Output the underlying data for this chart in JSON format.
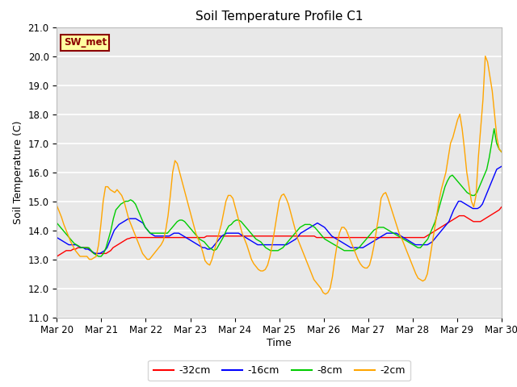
{
  "title": "Soil Temperature Profile C1",
  "xlabel": "Time",
  "ylabel": "Soil Temperature (C)",
  "ylim": [
    11.0,
    21.0
  ],
  "yticks": [
    11.0,
    12.0,
    13.0,
    14.0,
    15.0,
    16.0,
    17.0,
    18.0,
    19.0,
    20.0,
    21.0
  ],
  "annotation_text": "SW_met",
  "annotation_color": "#8B0000",
  "annotation_bg": "#FFFFA0",
  "annotation_border": "#8B0000",
  "background_color": "#E8E8E8",
  "grid_color": "#FFFFFF",
  "series_colors": {
    "-32cm": "#FF0000",
    "-16cm": "#0000FF",
    "-8cm": "#00CC00",
    "-2cm": "#FFA500"
  },
  "x_labels": [
    "Mar 20",
    "Mar 21",
    "Mar 22",
    "Mar 23",
    "Mar 24",
    "Mar 25",
    "Mar 26",
    "Mar 27",
    "Mar 28",
    "Mar 29",
    "Mar 30"
  ],
  "x_ticks": [
    0,
    24,
    48,
    72,
    96,
    120,
    144,
    168,
    192,
    216,
    240
  ],
  "total_hours": 240,
  "data_32cm": [
    13.1,
    13.15,
    13.2,
    13.25,
    13.3,
    13.3,
    13.3,
    13.35,
    13.35,
    13.4,
    13.4,
    13.4,
    13.4,
    13.4,
    13.35,
    13.25,
    13.2,
    13.2,
    13.2,
    13.2,
    13.2,
    13.2,
    13.25,
    13.3,
    13.4,
    13.45,
    13.5,
    13.55,
    13.6,
    13.65,
    13.7,
    13.72,
    13.75,
    13.75,
    13.75,
    13.75,
    13.75,
    13.75,
    13.75,
    13.75,
    13.75,
    13.75,
    13.75,
    13.75,
    13.75,
    13.75,
    13.75,
    13.75,
    13.75,
    13.75,
    13.75,
    13.75,
    13.75,
    13.75,
    13.75,
    13.75,
    13.75,
    13.75,
    13.75,
    13.75,
    13.75,
    13.75,
    13.75,
    13.75,
    13.8,
    13.8,
    13.8,
    13.8,
    13.8,
    13.8,
    13.8,
    13.8,
    13.8,
    13.8,
    13.8,
    13.8,
    13.8,
    13.8,
    13.8,
    13.8,
    13.8,
    13.8,
    13.8,
    13.8,
    13.8,
    13.8,
    13.8,
    13.8,
    13.8,
    13.8,
    13.8,
    13.8,
    13.8,
    13.8,
    13.8,
    13.8,
    13.8,
    13.8,
    13.8,
    13.8,
    13.8,
    13.8,
    13.8,
    13.8,
    13.8,
    13.8,
    13.8,
    13.8,
    13.8,
    13.8,
    13.8,
    13.75,
    13.75,
    13.75,
    13.75,
    13.75,
    13.75,
    13.75,
    13.75,
    13.75,
    13.75,
    13.75,
    13.75,
    13.75,
    13.75,
    13.75,
    13.75,
    13.75,
    13.75,
    13.75,
    13.75,
    13.75,
    13.75,
    13.75,
    13.75,
    13.75,
    13.75,
    13.75,
    13.75,
    13.75,
    13.75,
    13.75,
    13.75,
    13.75,
    13.75,
    13.75,
    13.75,
    13.75,
    13.75,
    13.75,
    13.75,
    13.75,
    13.75,
    13.75,
    13.75,
    13.75,
    13.75,
    13.75,
    13.8,
    13.85,
    13.9,
    13.95,
    14.0,
    14.05,
    14.1,
    14.15,
    14.2,
    14.25,
    14.3,
    14.35,
    14.4,
    14.45,
    14.5,
    14.5,
    14.5,
    14.45,
    14.4,
    14.35,
    14.3,
    14.3,
    14.3,
    14.3,
    14.35,
    14.4,
    14.45,
    14.5,
    14.55,
    14.6,
    14.65,
    14.7,
    14.8
  ],
  "data_16cm": [
    13.75,
    13.7,
    13.65,
    13.6,
    13.55,
    13.5,
    13.5,
    13.5,
    13.5,
    13.45,
    13.4,
    13.4,
    13.35,
    13.35,
    13.3,
    13.25,
    13.2,
    13.2,
    13.2,
    13.25,
    13.3,
    13.4,
    13.6,
    13.8,
    14.0,
    14.1,
    14.2,
    14.25,
    14.3,
    14.35,
    14.4,
    14.4,
    14.4,
    14.4,
    14.35,
    14.3,
    14.25,
    14.1,
    14.0,
    13.9,
    13.85,
    13.8,
    13.8,
    13.8,
    13.8,
    13.8,
    13.8,
    13.8,
    13.85,
    13.9,
    13.9,
    13.9,
    13.85,
    13.8,
    13.75,
    13.7,
    13.65,
    13.6,
    13.55,
    13.5,
    13.45,
    13.4,
    13.4,
    13.35,
    13.35,
    13.4,
    13.5,
    13.6,
    13.7,
    13.8,
    13.85,
    13.9,
    13.9,
    13.9,
    13.9,
    13.9,
    13.9,
    13.85,
    13.8,
    13.75,
    13.7,
    13.65,
    13.6,
    13.55,
    13.5,
    13.5,
    13.5,
    13.5,
    13.5,
    13.5,
    13.5,
    13.5,
    13.5,
    13.5,
    13.5,
    13.5,
    13.5,
    13.55,
    13.6,
    13.65,
    13.7,
    13.8,
    13.9,
    13.95,
    14.0,
    14.05,
    14.1,
    14.15,
    14.2,
    14.25,
    14.2,
    14.15,
    14.1,
    14.0,
    13.9,
    13.8,
    13.75,
    13.7,
    13.65,
    13.6,
    13.55,
    13.5,
    13.45,
    13.4,
    13.4,
    13.4,
    13.4,
    13.4,
    13.4,
    13.45,
    13.5,
    13.55,
    13.6,
    13.65,
    13.7,
    13.75,
    13.8,
    13.85,
    13.9,
    13.9,
    13.9,
    13.9,
    13.9,
    13.85,
    13.8,
    13.75,
    13.7,
    13.65,
    13.6,
    13.55,
    13.5,
    13.5,
    13.5,
    13.5,
    13.5,
    13.5,
    13.55,
    13.6,
    13.7,
    13.8,
    13.9,
    14.0,
    14.1,
    14.2,
    14.3,
    14.5,
    14.7,
    14.85,
    15.0,
    15.0,
    14.95,
    14.9,
    14.85,
    14.8,
    14.75,
    14.75,
    14.75,
    14.8,
    14.9,
    15.1,
    15.3,
    15.5,
    15.7,
    15.9,
    16.1,
    16.15,
    16.2
  ],
  "data_8cm": [
    14.25,
    14.15,
    14.05,
    13.95,
    13.85,
    13.75,
    13.65,
    13.55,
    13.5,
    13.45,
    13.4,
    13.4,
    13.4,
    13.4,
    13.3,
    13.2,
    13.15,
    13.1,
    13.1,
    13.2,
    13.4,
    13.7,
    14.0,
    14.4,
    14.7,
    14.8,
    14.9,
    14.95,
    15.0,
    15.0,
    15.05,
    15.0,
    14.9,
    14.7,
    14.5,
    14.3,
    14.1,
    14.0,
    13.9,
    13.9,
    13.9,
    13.9,
    13.9,
    13.9,
    13.9,
    13.9,
    14.0,
    14.1,
    14.2,
    14.3,
    14.35,
    14.35,
    14.3,
    14.2,
    14.1,
    14.0,
    13.9,
    13.8,
    13.7,
    13.65,
    13.6,
    13.5,
    13.4,
    13.35,
    13.3,
    13.35,
    13.5,
    13.65,
    13.8,
    14.0,
    14.15,
    14.2,
    14.3,
    14.35,
    14.35,
    14.3,
    14.2,
    14.1,
    14.0,
    13.9,
    13.8,
    13.7,
    13.65,
    13.6,
    13.5,
    13.4,
    13.35,
    13.3,
    13.3,
    13.3,
    13.3,
    13.35,
    13.4,
    13.5,
    13.6,
    13.7,
    13.8,
    13.9,
    14.0,
    14.1,
    14.15,
    14.2,
    14.2,
    14.2,
    14.15,
    14.1,
    14.0,
    13.9,
    13.8,
    13.7,
    13.65,
    13.6,
    13.55,
    13.5,
    13.45,
    13.4,
    13.35,
    13.3,
    13.3,
    13.3,
    13.3,
    13.3,
    13.35,
    13.4,
    13.5,
    13.6,
    13.7,
    13.8,
    13.9,
    14.0,
    14.05,
    14.1,
    14.1,
    14.1,
    14.05,
    14.0,
    13.95,
    13.9,
    13.85,
    13.8,
    13.75,
    13.7,
    13.65,
    13.6,
    13.55,
    13.5,
    13.45,
    13.4,
    13.4,
    13.5,
    13.6,
    13.7,
    13.9,
    14.1,
    14.3,
    14.6,
    14.9,
    15.2,
    15.5,
    15.7,
    15.85,
    15.9,
    15.8,
    15.7,
    15.6,
    15.5,
    15.4,
    15.3,
    15.25,
    15.2,
    15.2,
    15.3,
    15.5,
    15.7,
    15.9,
    16.1,
    16.5,
    17.0,
    17.5,
    17.0,
    16.8,
    16.7
  ],
  "data_2cm": [
    14.85,
    14.65,
    14.45,
    14.2,
    14.0,
    13.8,
    13.6,
    13.45,
    13.3,
    13.2,
    13.1,
    13.1,
    13.1,
    13.1,
    13.0,
    13.0,
    13.05,
    13.1,
    13.5,
    14.2,
    15.0,
    15.5,
    15.5,
    15.4,
    15.35,
    15.3,
    15.4,
    15.3,
    15.2,
    15.0,
    14.7,
    14.4,
    14.2,
    14.0,
    13.8,
    13.6,
    13.4,
    13.2,
    13.1,
    13.0,
    13.0,
    13.1,
    13.2,
    13.3,
    13.4,
    13.5,
    13.65,
    14.0,
    14.5,
    15.2,
    16.0,
    16.4,
    16.3,
    16.0,
    15.7,
    15.4,
    15.1,
    14.8,
    14.5,
    14.2,
    13.9,
    13.7,
    13.5,
    13.25,
    12.95,
    12.85,
    12.8,
    13.0,
    13.3,
    13.6,
    13.9,
    14.2,
    14.6,
    15.0,
    15.2,
    15.2,
    15.1,
    14.8,
    14.5,
    14.2,
    13.9,
    13.7,
    13.5,
    13.25,
    13.0,
    12.85,
    12.75,
    12.65,
    12.6,
    12.6,
    12.65,
    12.8,
    13.1,
    13.5,
    14.0,
    14.5,
    15.0,
    15.2,
    15.25,
    15.1,
    14.9,
    14.6,
    14.3,
    14.0,
    13.7,
    13.5,
    13.3,
    13.1,
    12.9,
    12.7,
    12.5,
    12.3,
    12.2,
    12.1,
    12.0,
    11.85,
    11.8,
    11.85,
    12.0,
    12.4,
    13.0,
    13.5,
    13.9,
    14.1,
    14.1,
    14.0,
    13.8,
    13.6,
    13.4,
    13.2,
    13.0,
    12.85,
    12.75,
    12.7,
    12.7,
    12.8,
    13.1,
    13.5,
    14.0,
    14.5,
    15.1,
    15.25,
    15.3,
    15.1,
    14.85,
    14.6,
    14.35,
    14.1,
    13.85,
    13.7,
    13.5,
    13.3,
    13.1,
    12.9,
    12.7,
    12.5,
    12.35,
    12.3,
    12.25,
    12.3,
    12.5,
    13.0,
    13.5,
    14.0,
    14.5,
    15.0,
    15.4,
    15.7,
    16.0,
    16.5,
    17.0,
    17.2,
    17.5,
    17.8,
    18.0,
    17.5,
    16.8,
    16.0,
    15.5,
    15.0,
    14.8,
    15.2,
    16.5,
    17.5,
    18.5,
    20.0,
    19.8,
    19.3,
    18.8,
    18.0,
    17.2,
    16.8,
    16.7
  ]
}
